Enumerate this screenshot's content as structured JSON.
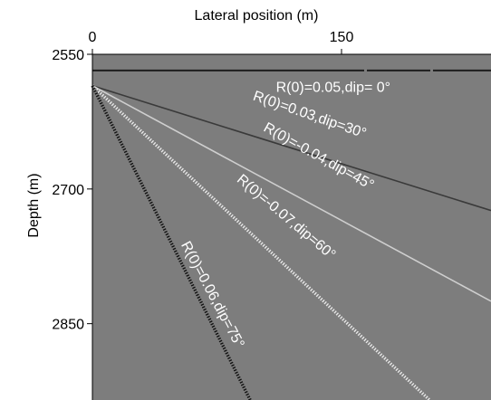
{
  "chart_data": {
    "type": "line",
    "xlabel": "Lateral position (m)",
    "ylabel": "Depth (m)",
    "xlim": [
      0,
      240
    ],
    "ylim": [
      2550,
      2935
    ],
    "x_ticks": [
      0,
      150
    ],
    "y_ticks": [
      2550,
      2700,
      2850
    ],
    "x_axis_position": "top",
    "grid": false,
    "background_color": "#7d7d7d",
    "series": [
      {
        "name": "R(0)=0.05,dip= 0°",
        "reflection_coefficient": 0.05,
        "dip_deg": 0,
        "x": [
          0,
          240
        ],
        "y": [
          2568,
          2568
        ],
        "color": "#1e1e1e",
        "style": "dashed"
      },
      {
        "name": "R(0)=0.03,dip=30°",
        "reflection_coefficient": 0.03,
        "dip_deg": 30,
        "x": [
          0,
          240
        ],
        "y": [
          2585,
          2724
        ],
        "color": "#3a3a3a",
        "style": "solid"
      },
      {
        "name": "R(0)=-0.04,dip=45°",
        "reflection_coefficient": -0.04,
        "dip_deg": 45,
        "x": [
          0,
          240
        ],
        "y": [
          2585,
          2825
        ],
        "color": "#cfcfcf",
        "style": "solid"
      },
      {
        "name": "R(0)=-0.07,dip=60°",
        "reflection_coefficient": -0.07,
        "dip_deg": 60,
        "x": [
          0,
          203
        ],
        "y": [
          2585,
          2935
        ],
        "color": "#e8e8e8",
        "style": "dotted"
      },
      {
        "name": "R(0)=0.06,dip=75°",
        "reflection_coefficient": 0.06,
        "dip_deg": 75,
        "x": [
          0,
          95
        ],
        "y": [
          2585,
          2935
        ],
        "color": "#111111",
        "style": "dotted"
      }
    ],
    "annotations": [
      {
        "text": "R(0)=0.05,dip= 0°",
        "x": 145,
        "y": 2592,
        "rotation_deg": 0
      },
      {
        "text": "R(0)=0.03,dip=30°",
        "x": 130,
        "y": 2622,
        "rotation_deg": 19
      },
      {
        "text": "R(0)=-0.04,dip=45°",
        "x": 135,
        "y": 2668,
        "rotation_deg": 29
      },
      {
        "text": "R(0)=-0.07,dip=60°",
        "x": 115,
        "y": 2735,
        "rotation_deg": 40
      },
      {
        "text": "R(0)=0.06,dip=75°",
        "x": 70,
        "y": 2820,
        "rotation_deg": 62
      }
    ]
  }
}
